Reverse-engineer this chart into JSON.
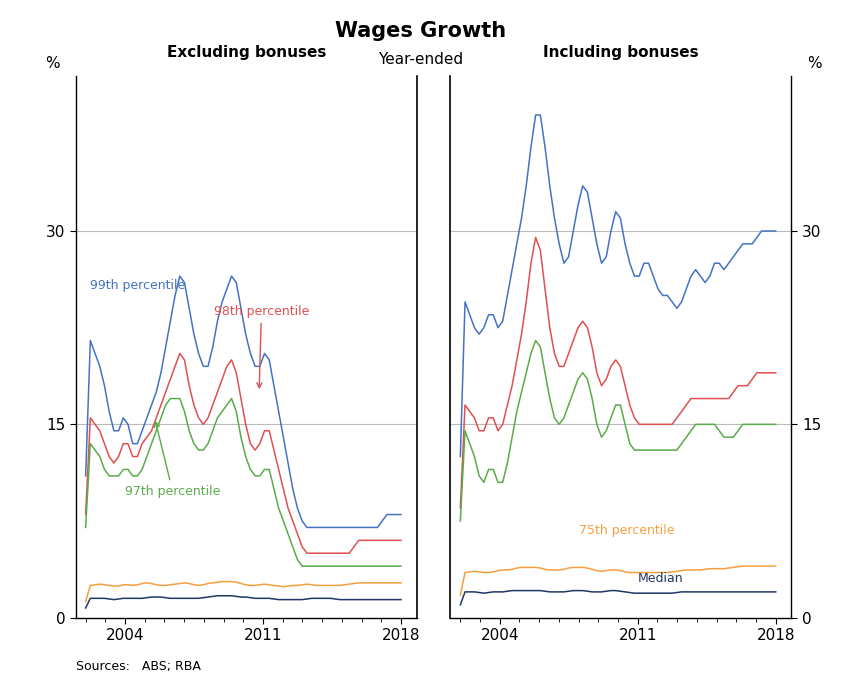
{
  "title": "Wages Growth",
  "subtitle": "Year-ended",
  "left_label": "Excluding bonuses",
  "right_label": "Including bonuses",
  "ylabel": "%",
  "source": "Sources:   ABS; RBA",
  "ylim": [
    0,
    42
  ],
  "yticks": [
    0,
    15,
    30
  ],
  "xlim": [
    2001.5,
    2018.8
  ],
  "xtick_years": [
    2004,
    2011,
    2018
  ],
  "colors": {
    "blue": "#4472C4",
    "red": "#E05050",
    "green": "#5AAB4A",
    "orange": "#F5A040",
    "dark_blue": "#1F3864"
  },
  "left_p99": [
    22,
    21,
    20,
    19,
    17,
    15,
    14,
    15,
    16,
    14,
    13,
    14,
    15,
    16,
    17,
    18,
    20,
    22,
    24,
    26,
    27,
    25,
    23,
    21,
    20,
    19,
    20,
    22,
    24,
    25,
    26,
    27,
    25,
    23,
    21,
    20,
    19,
    20,
    21,
    19,
    17,
    15,
    13,
    11,
    9,
    8,
    7,
    7,
    7,
    7,
    7,
    7,
    7,
    7,
    7,
    7,
    7,
    7,
    7,
    7,
    7,
    7,
    7,
    8,
    8,
    8,
    8,
    8
  ],
  "left_p98": [
    16,
    15,
    15,
    14,
    13,
    12,
    12,
    13,
    14,
    13,
    12,
    13,
    14,
    14,
    15,
    16,
    17,
    18,
    19,
    20,
    21,
    19,
    17,
    16,
    15,
    15,
    16,
    17,
    18,
    19,
    20,
    20,
    18,
    16,
    14,
    13,
    13,
    14,
    15,
    14,
    12,
    11,
    9,
    8,
    7,
    6,
    5,
    5,
    5,
    5,
    5,
    5,
    5,
    5,
    5,
    5,
    5,
    6,
    6,
    6,
    6,
    6,
    6,
    6,
    6,
    6,
    6,
    6
  ],
  "left_p97": [
    14,
    13,
    13,
    12,
    11,
    11,
    11,
    11,
    12,
    11,
    11,
    11,
    12,
    13,
    14,
    15,
    16,
    17,
    17,
    17,
    17,
    15,
    14,
    13,
    13,
    13,
    14,
    15,
    16,
    16,
    17,
    17,
    15,
    13,
    12,
    11,
    11,
    11,
    12,
    11,
    9,
    8,
    7,
    6,
    5,
    4,
    4,
    4,
    4,
    4,
    4,
    4,
    4,
    4,
    4,
    4,
    4,
    4,
    4,
    4,
    4,
    4,
    4,
    4,
    4,
    4,
    4,
    4
  ],
  "left_p75": [
    2.5,
    2.5,
    2.6,
    2.6,
    2.5,
    2.5,
    2.4,
    2.5,
    2.6,
    2.5,
    2.5,
    2.6,
    2.7,
    2.7,
    2.6,
    2.5,
    2.5,
    2.5,
    2.6,
    2.6,
    2.7,
    2.7,
    2.6,
    2.5,
    2.5,
    2.6,
    2.7,
    2.7,
    2.8,
    2.8,
    2.8,
    2.8,
    2.7,
    2.6,
    2.5,
    2.5,
    2.5,
    2.6,
    2.6,
    2.5,
    2.5,
    2.4,
    2.4,
    2.5,
    2.5,
    2.5,
    2.6,
    2.6,
    2.5,
    2.5,
    2.5,
    2.5,
    2.5,
    2.5,
    2.5,
    2.6,
    2.6,
    2.7,
    2.7,
    2.7,
    2.7,
    2.7,
    2.7,
    2.7,
    2.7,
    2.7,
    2.7,
    2.7
  ],
  "left_med": [
    1.5,
    1.5,
    1.5,
    1.5,
    1.5,
    1.4,
    1.4,
    1.5,
    1.5,
    1.5,
    1.5,
    1.5,
    1.5,
    1.6,
    1.6,
    1.6,
    1.6,
    1.5,
    1.5,
    1.5,
    1.5,
    1.5,
    1.5,
    1.5,
    1.5,
    1.6,
    1.6,
    1.7,
    1.7,
    1.7,
    1.7,
    1.7,
    1.6,
    1.6,
    1.6,
    1.5,
    1.5,
    1.5,
    1.5,
    1.5,
    1.4,
    1.4,
    1.4,
    1.4,
    1.4,
    1.4,
    1.4,
    1.5,
    1.5,
    1.5,
    1.5,
    1.5,
    1.5,
    1.4,
    1.4,
    1.4,
    1.4,
    1.4,
    1.4,
    1.4,
    1.4,
    1.4,
    1.4,
    1.4,
    1.4,
    1.4,
    1.4,
    1.4
  ],
  "right_p99": [
    25,
    24,
    23,
    22,
    22,
    23,
    24,
    23,
    22,
    24,
    26,
    28,
    30,
    32,
    35,
    38,
    40,
    38,
    35,
    32,
    30,
    28,
    27,
    29,
    31,
    33,
    34,
    32,
    30,
    28,
    27,
    29,
    31,
    32,
    30,
    28,
    27,
    26,
    27,
    28,
    27,
    26,
    25,
    25,
    25,
    24,
    24,
    25,
    26,
    27,
    27,
    26,
    26,
    27,
    28,
    27,
    27,
    28,
    28,
    29,
    29,
    29,
    29,
    30,
    30,
    30,
    30,
    30
  ],
  "right_p98": [
    17,
    16,
    16,
    15,
    14,
    15,
    16,
    15,
    14,
    16,
    17,
    19,
    21,
    23,
    26,
    29,
    30,
    27,
    24,
    21,
    20,
    19,
    20,
    21,
    22,
    23,
    23,
    22,
    20,
    18,
    18,
    19,
    20,
    20,
    19,
    17,
    16,
    15,
    15,
    15,
    15,
    15,
    15,
    15,
    15,
    15,
    16,
    16,
    17,
    17,
    17,
    17,
    17,
    17,
    17,
    17,
    17,
    17,
    18,
    18,
    18,
    18,
    19,
    19,
    19,
    19,
    19,
    19
  ],
  "right_p97": [
    15,
    14,
    13,
    12,
    10,
    11,
    12,
    11,
    10,
    11,
    13,
    15,
    17,
    18,
    20,
    21,
    22,
    20,
    18,
    16,
    15,
    15,
    16,
    17,
    18,
    19,
    19,
    18,
    16,
    14,
    14,
    15,
    16,
    17,
    16,
    14,
    13,
    13,
    13,
    13,
    13,
    13,
    13,
    13,
    13,
    13,
    13,
    14,
    14,
    15,
    15,
    15,
    15,
    15,
    15,
    14,
    14,
    14,
    14,
    15,
    15,
    15,
    15,
    15,
    15,
    15,
    15,
    15
  ],
  "right_p75": [
    3.5,
    3.5,
    3.6,
    3.6,
    3.5,
    3.5,
    3.5,
    3.6,
    3.7,
    3.7,
    3.7,
    3.8,
    3.9,
    3.9,
    3.9,
    3.9,
    3.9,
    3.8,
    3.7,
    3.7,
    3.7,
    3.7,
    3.8,
    3.9,
    3.9,
    3.9,
    3.9,
    3.8,
    3.7,
    3.6,
    3.6,
    3.7,
    3.7,
    3.7,
    3.6,
    3.5,
    3.5,
    3.5,
    3.5,
    3.5,
    3.5,
    3.5,
    3.5,
    3.5,
    3.5,
    3.6,
    3.6,
    3.7,
    3.7,
    3.7,
    3.7,
    3.7,
    3.8,
    3.8,
    3.8,
    3.8,
    3.8,
    3.9,
    3.9,
    4.0,
    4.0,
    4.0,
    4.0,
    4.0,
    4.0,
    4.0,
    4.0,
    4.0
  ],
  "right_med": [
    2.0,
    2.0,
    2.0,
    2.0,
    1.9,
    1.9,
    2.0,
    2.0,
    2.0,
    2.0,
    2.1,
    2.1,
    2.1,
    2.1,
    2.1,
    2.1,
    2.1,
    2.1,
    2.0,
    2.0,
    2.0,
    2.0,
    2.0,
    2.1,
    2.1,
    2.1,
    2.1,
    2.0,
    2.0,
    2.0,
    2.0,
    2.1,
    2.1,
    2.1,
    2.0,
    2.0,
    1.9,
    1.9,
    1.9,
    1.9,
    1.9,
    1.9,
    1.9,
    1.9,
    1.9,
    1.9,
    2.0,
    2.0,
    2.0,
    2.0,
    2.0,
    2.0,
    2.0,
    2.0,
    2.0,
    2.0,
    2.0,
    2.0,
    2.0,
    2.0,
    2.0,
    2.0,
    2.0,
    2.0,
    2.0,
    2.0,
    2.0,
    2.0
  ]
}
